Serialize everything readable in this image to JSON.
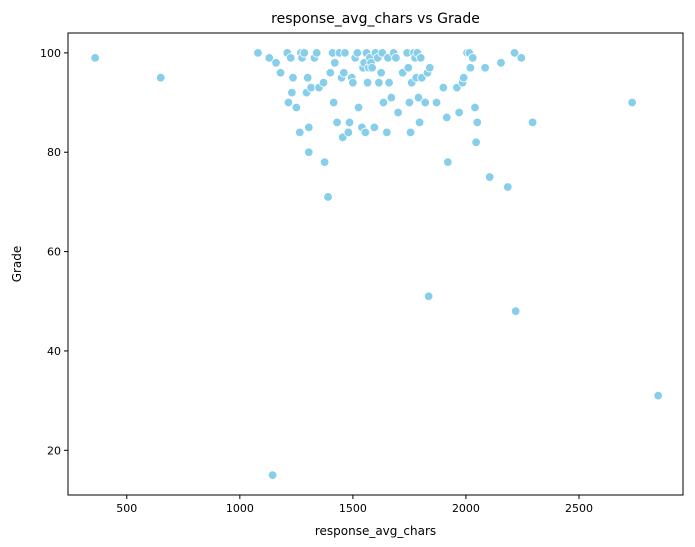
{
  "chart_data": {
    "type": "scatter",
    "title": "response_avg_chars vs Grade",
    "xlabel": "response_avg_chars",
    "ylabel": "Grade",
    "xlim": [
      240,
      2960
    ],
    "ylim": [
      11,
      104
    ],
    "xticks": [
      500,
      1000,
      1500,
      2000,
      2500
    ],
    "yticks": [
      20,
      40,
      60,
      80,
      100
    ],
    "grid": false,
    "marker_color": "#87CEEB",
    "marker_edge_color": "#ffffff",
    "points": [
      {
        "x": 360,
        "y": 99
      },
      {
        "x": 650,
        "y": 95
      },
      {
        "x": 1080,
        "y": 100
      },
      {
        "x": 1130,
        "y": 99
      },
      {
        "x": 1160,
        "y": 98
      },
      {
        "x": 1180,
        "y": 96
      },
      {
        "x": 1210,
        "y": 100
      },
      {
        "x": 1225,
        "y": 99
      },
      {
        "x": 1235,
        "y": 95
      },
      {
        "x": 1215,
        "y": 90
      },
      {
        "x": 1230,
        "y": 92
      },
      {
        "x": 1250,
        "y": 89
      },
      {
        "x": 1265,
        "y": 84
      },
      {
        "x": 1270,
        "y": 100
      },
      {
        "x": 1275,
        "y": 99
      },
      {
        "x": 1285,
        "y": 100
      },
      {
        "x": 1295,
        "y": 92
      },
      {
        "x": 1300,
        "y": 95
      },
      {
        "x": 1315,
        "y": 93
      },
      {
        "x": 1305,
        "y": 85
      },
      {
        "x": 1305,
        "y": 80
      },
      {
        "x": 1330,
        "y": 99
      },
      {
        "x": 1340,
        "y": 100
      },
      {
        "x": 1350,
        "y": 93
      },
      {
        "x": 1370,
        "y": 94
      },
      {
        "x": 1375,
        "y": 78
      },
      {
        "x": 1390,
        "y": 71
      },
      {
        "x": 1400,
        "y": 96
      },
      {
        "x": 1410,
        "y": 100
      },
      {
        "x": 1420,
        "y": 98
      },
      {
        "x": 1415,
        "y": 90
      },
      {
        "x": 1430,
        "y": 86
      },
      {
        "x": 1440,
        "y": 100
      },
      {
        "x": 1450,
        "y": 95
      },
      {
        "x": 1460,
        "y": 96
      },
      {
        "x": 1465,
        "y": 100
      },
      {
        "x": 1455,
        "y": 83
      },
      {
        "x": 1480,
        "y": 84
      },
      {
        "x": 1485,
        "y": 86
      },
      {
        "x": 1495,
        "y": 95
      },
      {
        "x": 1500,
        "y": 94
      },
      {
        "x": 1510,
        "y": 99
      },
      {
        "x": 1520,
        "y": 100
      },
      {
        "x": 1525,
        "y": 89
      },
      {
        "x": 1540,
        "y": 85
      },
      {
        "x": 1545,
        "y": 97
      },
      {
        "x": 1550,
        "y": 98
      },
      {
        "x": 1555,
        "y": 84
      },
      {
        "x": 1560,
        "y": 100
      },
      {
        "x": 1565,
        "y": 94
      },
      {
        "x": 1570,
        "y": 97
      },
      {
        "x": 1575,
        "y": 99
      },
      {
        "x": 1580,
        "y": 98
      },
      {
        "x": 1585,
        "y": 97
      },
      {
        "x": 1595,
        "y": 85
      },
      {
        "x": 1600,
        "y": 100
      },
      {
        "x": 1610,
        "y": 99
      },
      {
        "x": 1615,
        "y": 94
      },
      {
        "x": 1625,
        "y": 96
      },
      {
        "x": 1630,
        "y": 100
      },
      {
        "x": 1635,
        "y": 90
      },
      {
        "x": 1650,
        "y": 84
      },
      {
        "x": 1655,
        "y": 99
      },
      {
        "x": 1660,
        "y": 94
      },
      {
        "x": 1670,
        "y": 91
      },
      {
        "x": 1680,
        "y": 100
      },
      {
        "x": 1690,
        "y": 99
      },
      {
        "x": 1700,
        "y": 88
      },
      {
        "x": 1720,
        "y": 96
      },
      {
        "x": 1740,
        "y": 100
      },
      {
        "x": 1745,
        "y": 97
      },
      {
        "x": 1750,
        "y": 90
      },
      {
        "x": 1755,
        "y": 84
      },
      {
        "x": 1760,
        "y": 94
      },
      {
        "x": 1770,
        "y": 100
      },
      {
        "x": 1775,
        "y": 99
      },
      {
        "x": 1780,
        "y": 95
      },
      {
        "x": 1785,
        "y": 100
      },
      {
        "x": 1790,
        "y": 91
      },
      {
        "x": 1795,
        "y": 86
      },
      {
        "x": 1800,
        "y": 99
      },
      {
        "x": 1805,
        "y": 95
      },
      {
        "x": 1820,
        "y": 90
      },
      {
        "x": 1830,
        "y": 96
      },
      {
        "x": 1840,
        "y": 97
      },
      {
        "x": 1835,
        "y": 51
      },
      {
        "x": 1870,
        "y": 90
      },
      {
        "x": 1900,
        "y": 93
      },
      {
        "x": 1915,
        "y": 87
      },
      {
        "x": 1920,
        "y": 78
      },
      {
        "x": 1960,
        "y": 93
      },
      {
        "x": 1970,
        "y": 88
      },
      {
        "x": 1985,
        "y": 94
      },
      {
        "x": 1990,
        "y": 95
      },
      {
        "x": 2005,
        "y": 100
      },
      {
        "x": 2015,
        "y": 100
      },
      {
        "x": 2020,
        "y": 97
      },
      {
        "x": 2030,
        "y": 99
      },
      {
        "x": 2040,
        "y": 89
      },
      {
        "x": 2045,
        "y": 82
      },
      {
        "x": 2050,
        "y": 86
      },
      {
        "x": 2085,
        "y": 97
      },
      {
        "x": 2105,
        "y": 75
      },
      {
        "x": 2155,
        "y": 98
      },
      {
        "x": 2185,
        "y": 73
      },
      {
        "x": 2215,
        "y": 100
      },
      {
        "x": 2220,
        "y": 48
      },
      {
        "x": 2245,
        "y": 99
      },
      {
        "x": 2295,
        "y": 86
      },
      {
        "x": 2735,
        "y": 90
      },
      {
        "x": 2850,
        "y": 31
      },
      {
        "x": 1145,
        "y": 15
      }
    ]
  }
}
